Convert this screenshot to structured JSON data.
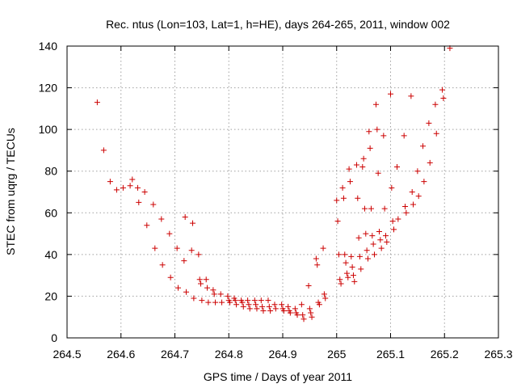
{
  "chart_data": {
    "type": "scatter",
    "title": "Rec. ntus (Lon=103, Lat=1, h=HE), days 264-265, 2011, window 002",
    "xlabel": "GPS time / Days of year 2011",
    "ylabel": "STEC from uqrg / TECUs",
    "xlim": [
      264.5,
      265.3
    ],
    "ylim": [
      0,
      140
    ],
    "xticks": [
      "264.5",
      "264.6",
      "264.7",
      "264.8",
      "264.9",
      "265",
      "265.1",
      "265.2",
      "265.3"
    ],
    "yticks": [
      "0",
      "20",
      "40",
      "60",
      "80",
      "100",
      "120",
      "140"
    ],
    "grid": true,
    "marker": "+",
    "color": "#cc0000",
    "points": [
      [
        264.556,
        113
      ],
      [
        264.568,
        90
      ],
      [
        264.58,
        75
      ],
      [
        264.592,
        71
      ],
      [
        264.604,
        72
      ],
      [
        264.617,
        73
      ],
      [
        264.621,
        76
      ],
      [
        264.631,
        72
      ],
      [
        264.633,
        65
      ],
      [
        264.644,
        70
      ],
      [
        264.648,
        54
      ],
      [
        264.66,
        64
      ],
      [
        264.663,
        43
      ],
      [
        264.675,
        57
      ],
      [
        264.677,
        35
      ],
      [
        264.69,
        50
      ],
      [
        264.692,
        29
      ],
      [
        264.704,
        43
      ],
      [
        264.706,
        24
      ],
      [
        264.717,
        37
      ],
      [
        264.719,
        58
      ],
      [
        264.721,
        22
      ],
      [
        264.731,
        42
      ],
      [
        264.733,
        55
      ],
      [
        264.735,
        19
      ],
      [
        264.744,
        40
      ],
      [
        264.746,
        28
      ],
      [
        264.748,
        26
      ],
      [
        264.75,
        18
      ],
      [
        264.758,
        28
      ],
      [
        264.76,
        24
      ],
      [
        264.762,
        17
      ],
      [
        264.771,
        23
      ],
      [
        264.773,
        21
      ],
      [
        264.775,
        17
      ],
      [
        264.785,
        21
      ],
      [
        264.787,
        17
      ],
      [
        264.798,
        20
      ],
      [
        264.8,
        18
      ],
      [
        264.802,
        17
      ],
      [
        264.81,
        19
      ],
      [
        264.812,
        18
      ],
      [
        264.814,
        16
      ],
      [
        264.823,
        18
      ],
      [
        264.825,
        17
      ],
      [
        264.827,
        15
      ],
      [
        264.835,
        18
      ],
      [
        264.837,
        16
      ],
      [
        264.839,
        14
      ],
      [
        264.848,
        18
      ],
      [
        264.85,
        16
      ],
      [
        264.852,
        14
      ],
      [
        264.86,
        18
      ],
      [
        264.862,
        15
      ],
      [
        264.864,
        13
      ],
      [
        264.873,
        18
      ],
      [
        264.875,
        15
      ],
      [
        264.877,
        13
      ],
      [
        264.885,
        16
      ],
      [
        264.887,
        14
      ],
      [
        264.898,
        16
      ],
      [
        264.9,
        14
      ],
      [
        264.902,
        13
      ],
      [
        264.91,
        15
      ],
      [
        264.912,
        13
      ],
      [
        264.914,
        12
      ],
      [
        264.923,
        14
      ],
      [
        264.925,
        12
      ],
      [
        264.927,
        11
      ],
      [
        264.935,
        16
      ],
      [
        264.937,
        11
      ],
      [
        264.939,
        9
      ],
      [
        264.948,
        25
      ],
      [
        264.95,
        14
      ],
      [
        264.952,
        12
      ],
      [
        264.954,
        10
      ],
      [
        264.962,
        38
      ],
      [
        264.964,
        35
      ],
      [
        264.966,
        17
      ],
      [
        264.968,
        16
      ],
      [
        264.975,
        43
      ],
      [
        264.977,
        21
      ],
      [
        264.979,
        19
      ],
      [
        265.0,
        66
      ],
      [
        265.002,
        56
      ],
      [
        265.004,
        40
      ],
      [
        265.006,
        28
      ],
      [
        265.008,
        26
      ],
      [
        265.011,
        72
      ],
      [
        265.013,
        67
      ],
      [
        265.015,
        40
      ],
      [
        265.017,
        36
      ],
      [
        265.019,
        31
      ],
      [
        265.021,
        29
      ],
      [
        265.023,
        81
      ],
      [
        265.025,
        75
      ],
      [
        265.027,
        39
      ],
      [
        265.029,
        34
      ],
      [
        265.031,
        30
      ],
      [
        265.033,
        27
      ],
      [
        265.037,
        83
      ],
      [
        265.039,
        67
      ],
      [
        265.041,
        48
      ],
      [
        265.043,
        39
      ],
      [
        265.045,
        33
      ],
      [
        265.048,
        82
      ],
      [
        265.05,
        86
      ],
      [
        265.052,
        62
      ],
      [
        265.054,
        50
      ],
      [
        265.056,
        42
      ],
      [
        265.058,
        38
      ],
      [
        265.06,
        99
      ],
      [
        265.062,
        91
      ],
      [
        265.064,
        62
      ],
      [
        265.066,
        49
      ],
      [
        265.068,
        45
      ],
      [
        265.07,
        40
      ],
      [
        265.073,
        112
      ],
      [
        265.075,
        100
      ],
      [
        265.077,
        79
      ],
      [
        265.079,
        51
      ],
      [
        265.081,
        47
      ],
      [
        265.083,
        43
      ],
      [
        265.087,
        97
      ],
      [
        265.089,
        62
      ],
      [
        265.091,
        49
      ],
      [
        265.093,
        46
      ],
      [
        265.1,
        117
      ],
      [
        265.102,
        72
      ],
      [
        265.104,
        56
      ],
      [
        265.106,
        52
      ],
      [
        265.112,
        82
      ],
      [
        265.114,
        57
      ],
      [
        265.125,
        97
      ],
      [
        265.127,
        63
      ],
      [
        265.129,
        60
      ],
      [
        265.138,
        116
      ],
      [
        265.14,
        70
      ],
      [
        265.142,
        64
      ],
      [
        265.15,
        80
      ],
      [
        265.152,
        68
      ],
      [
        265.16,
        92
      ],
      [
        265.162,
        75
      ],
      [
        265.171,
        103
      ],
      [
        265.173,
        84
      ],
      [
        265.183,
        112
      ],
      [
        265.185,
        98
      ],
      [
        265.196,
        119
      ],
      [
        265.198,
        115
      ],
      [
        265.21,
        139
      ]
    ]
  }
}
